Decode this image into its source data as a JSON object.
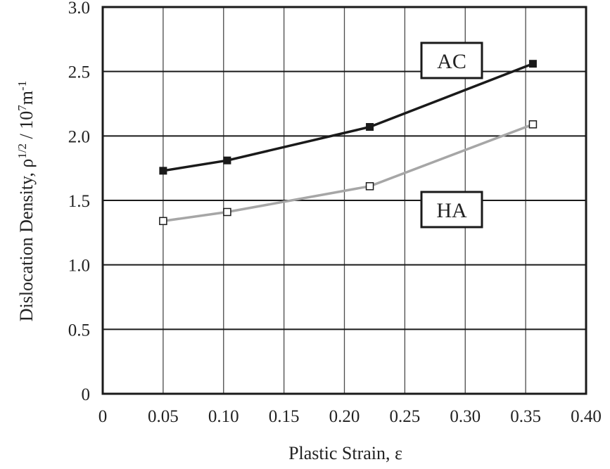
{
  "chart_data": {
    "type": "line",
    "title": "",
    "xlabel": "Plastic Strain, ε",
    "ylabel": {
      "base": "Dislocation Density, ρ",
      "exp1": "1/2",
      "mid": " / 10",
      "exp2": "7",
      "unit": "m",
      "exp3": "-1"
    },
    "xlim": [
      0,
      0.4
    ],
    "ylim": [
      0,
      3.0
    ],
    "x_ticks": [
      "0",
      "0.05",
      "0.10",
      "0.15",
      "0.20",
      "0.25",
      "0.30",
      "0.35",
      "0.40"
    ],
    "y_ticks": [
      "0",
      "0.5",
      "1.0",
      "1.5",
      "2.0",
      "2.5",
      "3.0"
    ],
    "grid": true,
    "series": [
      {
        "name": "AC",
        "color": "#1a1a1a",
        "marker": "filled-square",
        "x": [
          0.05,
          0.103,
          0.221,
          0.356
        ],
        "y": [
          1.73,
          1.81,
          2.07,
          2.56
        ]
      },
      {
        "name": "HA",
        "color": "#a6a6a6",
        "marker": "open-square",
        "x": [
          0.05,
          0.103,
          0.221,
          0.356
        ],
        "y": [
          1.34,
          1.41,
          1.61,
          2.09
        ]
      }
    ]
  }
}
